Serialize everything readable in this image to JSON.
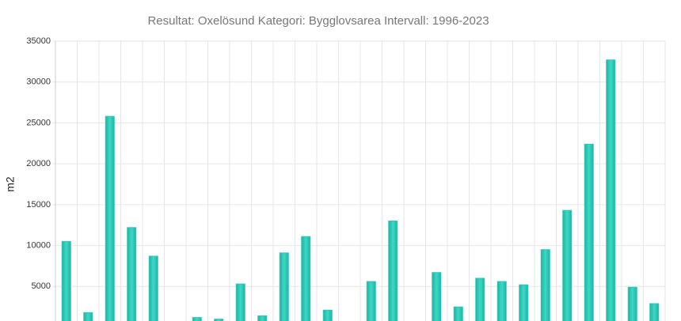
{
  "chart_data": {
    "type": "bar",
    "title": "Resultat: Oxelösund Kategori: Bygglovsarea Intervall: 1996-2023",
    "y_label": "m2",
    "values": [
      10500,
      1800,
      25800,
      12200,
      8700,
      0,
      1200,
      1000,
      5300,
      1400,
      9100,
      11100,
      2100,
      0,
      5600,
      13000,
      0,
      6700,
      2500,
      6000,
      5600,
      5200,
      9500,
      14300,
      22400,
      32700,
      4900,
      2900
    ],
    "color": "#2ec7b5",
    "ylim": [
      0,
      35000
    ],
    "yticks": [
      5000,
      10000,
      15000,
      20000,
      25000,
      30000,
      35000
    ],
    "grid": true
  }
}
